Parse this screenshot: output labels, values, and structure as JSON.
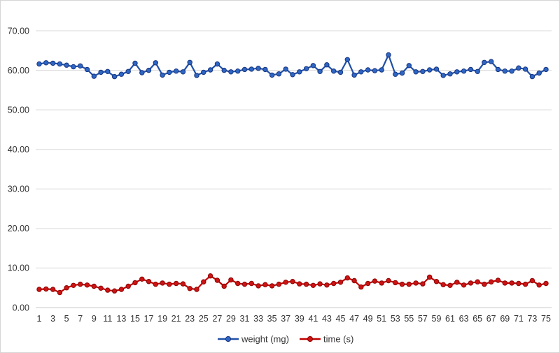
{
  "chart": {
    "background": "#ffffff",
    "frame_border_color": "#d5d5d5",
    "gridline_color": "#d9d9d9",
    "zero_line_color": "#c9c9c9",
    "label_color": "#333333",
    "legend": {
      "position": "bottom-center",
      "items": [
        {
          "label": "weight (mg)",
          "color": "#2050a8"
        },
        {
          "label": "time (s)",
          "color": "#c00000"
        }
      ]
    }
  },
  "chart_data": {
    "type": "line",
    "title": "",
    "xlabel": "",
    "ylabel": "",
    "grid": true,
    "gridlines": "horizontal",
    "ylim": [
      0,
      70
    ],
    "y_tick_labels": [
      "0.00",
      "10.00",
      "20.00",
      "30.00",
      "40.00",
      "50.00",
      "60.00",
      "70.00"
    ],
    "y_tick_values": [
      0,
      10,
      20,
      30,
      40,
      50,
      60,
      70
    ],
    "x_tick_labels": [
      1,
      3,
      5,
      7,
      9,
      11,
      13,
      15,
      17,
      19,
      21,
      23,
      25,
      27,
      29,
      31,
      33,
      35,
      37,
      39,
      41,
      43,
      45,
      47,
      49,
      51,
      53,
      55,
      57,
      59,
      61,
      63,
      65,
      67,
      69,
      71,
      73,
      75
    ],
    "x": [
      1,
      2,
      3,
      4,
      5,
      6,
      7,
      8,
      9,
      10,
      11,
      12,
      13,
      14,
      15,
      16,
      17,
      18,
      19,
      20,
      21,
      22,
      23,
      24,
      25,
      26,
      27,
      28,
      29,
      30,
      31,
      32,
      33,
      34,
      35,
      36,
      37,
      38,
      39,
      40,
      41,
      42,
      43,
      44,
      45,
      46,
      47,
      48,
      49,
      50,
      51,
      52,
      53,
      54,
      55,
      56,
      57,
      58,
      59,
      60,
      61,
      62,
      63,
      64,
      65,
      66,
      67,
      68,
      69,
      70,
      71,
      72,
      73,
      74,
      75
    ],
    "legend_position": "bottom",
    "series": [
      {
        "name": "weight (mg)",
        "line_color": "#2050a8",
        "marker_fill": "#2f66c4",
        "marker_stroke": "#16357f",
        "marker": "circle",
        "values": [
          61.6,
          61.9,
          61.8,
          61.6,
          61.3,
          60.9,
          61.1,
          60.2,
          58.5,
          59.5,
          59.7,
          58.4,
          59.0,
          59.7,
          61.8,
          59.4,
          60.0,
          61.9,
          58.8,
          59.5,
          59.8,
          59.6,
          62.0,
          58.7,
          59.5,
          60.1,
          61.6,
          60.0,
          59.6,
          59.8,
          60.2,
          60.3,
          60.5,
          60.2,
          58.8,
          59.1,
          60.3,
          58.9,
          59.6,
          60.4,
          61.2,
          59.7,
          61.4,
          59.8,
          59.5,
          62.7,
          58.8,
          59.6,
          60.1,
          59.9,
          60.1,
          63.9,
          59.0,
          59.3,
          61.2,
          59.6,
          59.7,
          60.1,
          60.3,
          58.7,
          59.1,
          59.6,
          59.8,
          60.2,
          59.7,
          62.0,
          62.2,
          60.2,
          59.8,
          59.8,
          60.6,
          60.3,
          58.4,
          59.3,
          60.2
        ]
      },
      {
        "name": "time (s)",
        "line_color": "#c00000",
        "marker_fill": "#cc1414",
        "marker_stroke": "#8e0000",
        "marker": "circle",
        "values": [
          4.6,
          4.7,
          4.6,
          3.8,
          5.0,
          5.6,
          5.9,
          5.7,
          5.4,
          4.9,
          4.4,
          4.2,
          4.6,
          5.4,
          6.3,
          7.2,
          6.6,
          5.9,
          6.2,
          5.9,
          6.1,
          6.0,
          4.8,
          4.6,
          6.5,
          8.0,
          6.9,
          5.4,
          7.0,
          6.1,
          5.9,
          6.1,
          5.5,
          5.8,
          5.5,
          5.9,
          6.4,
          6.6,
          6.0,
          5.9,
          5.6,
          6.0,
          5.7,
          6.1,
          6.4,
          7.5,
          6.8,
          5.2,
          6.1,
          6.7,
          6.2,
          6.8,
          6.3,
          5.9,
          5.9,
          6.2,
          6.0,
          7.7,
          6.6,
          5.8,
          5.6,
          6.4,
          5.7,
          6.2,
          6.5,
          5.9,
          6.5,
          6.9,
          6.2,
          6.2,
          6.1,
          5.9,
          6.8,
          5.7,
          6.1
        ]
      }
    ]
  }
}
